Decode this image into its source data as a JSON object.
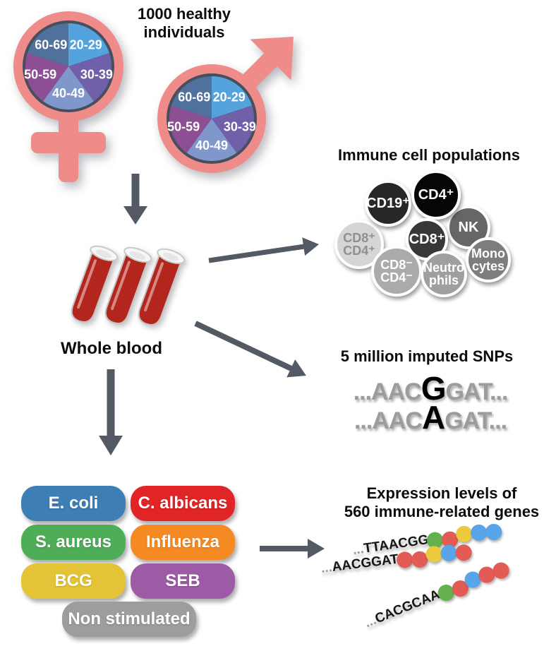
{
  "header": {
    "title": "1000 healthy individuals"
  },
  "demographics": {
    "symbol_color": "#ef8b89",
    "ring_color": "#474f5c",
    "age_groups": [
      {
        "label": "20-29",
        "color": "#55a3dc"
      },
      {
        "label": "30-39",
        "color": "#6f60a9"
      },
      {
        "label": "40-49",
        "color": "#8097cc"
      },
      {
        "label": "50-59",
        "color": "#8d4f93"
      },
      {
        "label": "60-69",
        "color": "#50719b"
      }
    ]
  },
  "whole_blood": {
    "label": "Whole blood",
    "blood_color": "#b2261d"
  },
  "immune_cells": {
    "title": "Immune cell populations",
    "cells": [
      {
        "name": "CD8+CD4+",
        "lines": [
          "CD8⁺",
          "CD4⁺"
        ],
        "fill": "#d5d5d5",
        "text_color": "#8f8f8f"
      },
      {
        "name": "CD19+",
        "lines": [
          "CD19⁺"
        ],
        "fill": "#272727",
        "text_color": "#ffffff"
      },
      {
        "name": "NK",
        "lines": [
          "NK"
        ],
        "fill": "#666666",
        "text_color": "#ffffff"
      },
      {
        "name": "CD4+",
        "lines": [
          "CD4⁺"
        ],
        "fill": "#060606",
        "text_color": "#ffffff"
      },
      {
        "name": "CD8+",
        "lines": [
          "CD8⁺"
        ],
        "fill": "#383838",
        "text_color": "#ffffff"
      },
      {
        "name": "CD8-CD4-",
        "lines": [
          "CD8⁻",
          "CD4⁻"
        ],
        "fill": "#ababab",
        "text_color": "#ffffff"
      },
      {
        "name": "Neutrophils",
        "lines": [
          "Neutro",
          "phils"
        ],
        "fill": "#9f9f9f",
        "text_color": "#ffffff"
      },
      {
        "name": "Monocytes",
        "lines": [
          "Mono",
          "cytes"
        ],
        "fill": "#7d7d7d",
        "text_color": "#ffffff"
      }
    ]
  },
  "snps": {
    "title": "5 million imputed SNPs",
    "sequences": [
      {
        "prefix": "...AAC",
        "variant": "G",
        "suffix": "GAT..."
      },
      {
        "prefix": "...AAC",
        "variant": "A",
        "suffix": "GAT..."
      }
    ]
  },
  "stimuli": {
    "items": [
      {
        "label": "E. coli",
        "color": "#3d7eb4"
      },
      {
        "label": "C. albicans",
        "color": "#e12426"
      },
      {
        "label": "S. aureus",
        "color": "#4eae57"
      },
      {
        "label": "Influenza",
        "color": "#f68a22"
      },
      {
        "label": "BCG",
        "color": "#e4c436"
      },
      {
        "label": "SEB",
        "color": "#9d5aa5"
      },
      {
        "label": "Non stimulated",
        "color": "#9d9d9d"
      }
    ]
  },
  "expression": {
    "title": [
      "Expression levels of",
      "560 immune-related genes"
    ],
    "dot_colors": {
      "green": "#64b04f",
      "red": "#e25b54",
      "yellow": "#ebcb3d",
      "blue": "#58a5ea"
    },
    "genes": [
      {
        "sequence": "...TTAACGG",
        "dots": [
          "green",
          "red",
          "yellow",
          "blue",
          "blue"
        ]
      },
      {
        "sequence": "...AACGGAT",
        "dots": [
          "red",
          "red",
          "yellow",
          "blue",
          "red"
        ]
      },
      {
        "sequence": "...CACGCAA",
        "dots": [
          "green",
          "red",
          "blue",
          "red",
          "red"
        ]
      }
    ]
  },
  "arrow_color": "#535a64"
}
